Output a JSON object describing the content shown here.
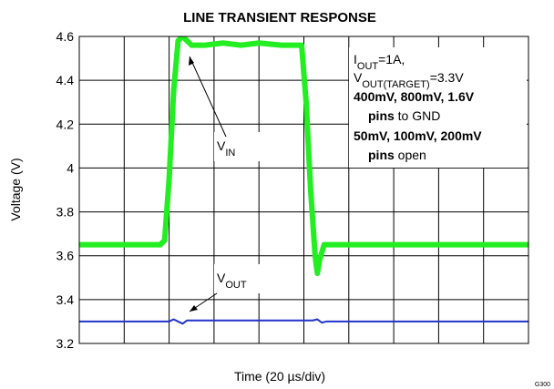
{
  "chart_data": {
    "type": "line",
    "title": "LINE TRANSIENT RESPONSE",
    "xlabel": "Time (20 µs/div)",
    "ylabel": "Voltage (V)",
    "figure_id": "G300",
    "xlim": [
      0,
      10
    ],
    "xdivisions": 10,
    "ylim": [
      3.2,
      4.6
    ],
    "yticks": [
      3.2,
      3.4,
      3.6,
      3.8,
      4,
      4.2,
      4.4,
      4.6
    ],
    "grid": true,
    "series": [
      {
        "label": [
          {
            "text": "V"
          },
          {
            "text": "IN",
            "sub": true
          }
        ],
        "color": "#22ee22",
        "x": [
          0,
          0.3,
          0.6,
          0.9,
          1.2,
          1.5,
          1.8,
          1.9,
          2.0,
          2.1,
          2.2,
          2.3,
          2.5,
          2.8,
          3.2,
          3.6,
          4.0,
          4.5,
          4.95,
          5.05,
          5.15,
          5.25,
          5.3,
          5.35,
          5.45,
          5.6,
          5.9,
          6.5,
          7.5,
          8.5,
          9.5,
          10
        ],
        "values": [
          3.65,
          3.65,
          3.65,
          3.65,
          3.65,
          3.65,
          3.65,
          3.67,
          3.95,
          4.35,
          4.58,
          4.6,
          4.56,
          4.56,
          4.57,
          4.56,
          4.57,
          4.56,
          4.56,
          4.3,
          3.9,
          3.6,
          3.52,
          3.58,
          3.65,
          3.65,
          3.65,
          3.65,
          3.65,
          3.65,
          3.65,
          3.65
        ]
      },
      {
        "label": [
          {
            "text": "V"
          },
          {
            "text": "OUT",
            "sub": true
          }
        ],
        "color": "#2233cc",
        "x": [
          0,
          2.0,
          2.1,
          2.2,
          2.3,
          2.4,
          3,
          5.2,
          5.3,
          5.4,
          5.5,
          6,
          10
        ],
        "values": [
          3.3,
          3.3,
          3.31,
          3.3,
          3.29,
          3.305,
          3.305,
          3.305,
          3.31,
          3.295,
          3.3,
          3.3,
          3.3
        ]
      }
    ],
    "annotations": [
      [
        {
          "text": "I"
        },
        {
          "text": "OUT",
          "sub": true
        },
        {
          "text": "=1A,"
        }
      ],
      [
        {
          "text": "V"
        },
        {
          "text": "OUT(TARGET)",
          "sub": true
        },
        {
          "text": "=3.3V"
        }
      ],
      [
        {
          "text": "400mV, 800mV, 1.6V",
          "bold": true
        }
      ],
      [
        {
          "text": "pins",
          "bold": true,
          "indent": true
        },
        {
          "text": " to GND"
        }
      ],
      [
        {
          "text": "50mV, 100mV, 200mV",
          "bold": true
        }
      ],
      [
        {
          "text": "pins",
          "bold": true,
          "indent": true
        },
        {
          "text": " open"
        }
      ]
    ]
  }
}
